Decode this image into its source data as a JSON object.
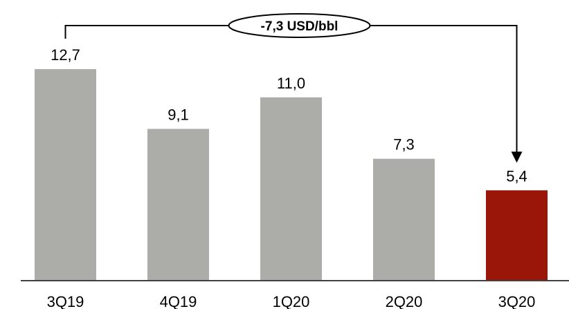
{
  "chart_data": {
    "type": "bar",
    "categories": [
      "3Q19",
      "4Q19",
      "1Q20",
      "2Q20",
      "3Q20"
    ],
    "values": [
      12.7,
      9.1,
      11.0,
      7.3,
      5.4
    ],
    "value_labels": [
      "12,7",
      "9,1",
      "11,0",
      "7,3",
      "5,4"
    ],
    "bar_colors": [
      "#acaca8",
      "#acaca8",
      "#acaca8",
      "#acaca8",
      "#9a1608"
    ],
    "title": "",
    "xlabel": "",
    "ylabel": "",
    "ylim": [
      0,
      12.7
    ],
    "grid": false,
    "legend": "none",
    "annotation": {
      "label": "-7,3 USD/bbl",
      "from_category": "3Q19",
      "to_category": "3Q20"
    }
  }
}
